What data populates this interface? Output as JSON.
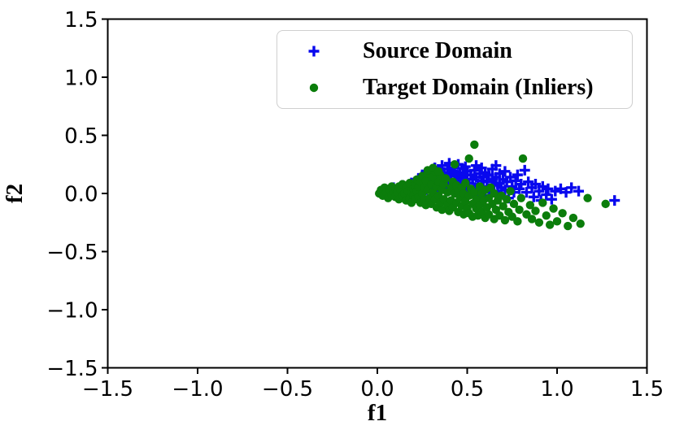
{
  "figure": {
    "background": "#ffffff",
    "axis_color": "#000000",
    "legend_border_color": "#cfcfcf"
  },
  "chart_data": {
    "type": "scatter",
    "title": "",
    "xlabel": "f1",
    "ylabel": "f2",
    "xlim": [
      -1.5,
      1.5
    ],
    "ylim": [
      -1.5,
      1.5
    ],
    "xticks": [
      -1.5,
      -1.0,
      -0.5,
      0.0,
      0.5,
      1.0,
      1.5
    ],
    "yticks": [
      -1.5,
      -1.0,
      -0.5,
      0.0,
      0.5,
      1.0,
      1.5
    ],
    "grid": false,
    "legend_position": "upper right",
    "series": [
      {
        "name": "Source Domain",
        "marker": "plus",
        "color": "#0808ee",
        "points": [
          [
            0.06,
            0.02
          ],
          [
            0.09,
            0.05
          ],
          [
            0.12,
            0.03
          ],
          [
            0.14,
            0.07
          ],
          [
            0.16,
            0.01
          ],
          [
            0.18,
            0.06
          ],
          [
            0.13,
            0.0
          ],
          [
            0.19,
            0.09
          ],
          [
            0.2,
            0.04
          ],
          [
            0.21,
            0.1
          ],
          [
            0.22,
            0.02
          ],
          [
            0.23,
            0.13
          ],
          [
            0.24,
            0.06
          ],
          [
            0.25,
            0.16
          ],
          [
            0.25,
            0.0
          ],
          [
            0.26,
            0.09
          ],
          [
            0.27,
            0.18
          ],
          [
            0.27,
            0.04
          ],
          [
            0.28,
            0.12
          ],
          [
            0.29,
            0.07
          ],
          [
            0.29,
            0.15
          ],
          [
            0.3,
            0.02
          ],
          [
            0.3,
            0.19
          ],
          [
            0.31,
            0.1
          ],
          [
            0.31,
            0.05
          ],
          [
            0.32,
            0.14
          ],
          [
            0.32,
            0.22
          ],
          [
            0.33,
            0.08
          ],
          [
            0.33,
            0.17
          ],
          [
            0.34,
            0.03
          ],
          [
            0.34,
            0.12
          ],
          [
            0.35,
            0.2
          ],
          [
            0.35,
            0.06
          ],
          [
            0.36,
            0.15
          ],
          [
            0.36,
            0.24
          ],
          [
            0.37,
            0.09
          ],
          [
            0.37,
            0.18
          ],
          [
            0.38,
            0.05
          ],
          [
            0.38,
            0.13
          ],
          [
            0.39,
            0.21
          ],
          [
            0.39,
            0.02
          ],
          [
            0.4,
            0.11
          ],
          [
            0.4,
            0.17
          ],
          [
            0.4,
            0.26
          ],
          [
            0.41,
            0.07
          ],
          [
            0.41,
            0.15
          ],
          [
            0.42,
            0.22
          ],
          [
            0.42,
            0.03
          ],
          [
            0.43,
            0.12
          ],
          [
            0.43,
            0.19
          ],
          [
            0.44,
            0.06
          ],
          [
            0.44,
            0.16
          ],
          [
            0.45,
            0.25
          ],
          [
            0.45,
            0.01
          ],
          [
            0.46,
            0.1
          ],
          [
            0.46,
            0.18
          ],
          [
            0.47,
            0.04
          ],
          [
            0.47,
            0.14
          ],
          [
            0.48,
            0.21
          ],
          [
            0.48,
            0.08
          ],
          [
            0.49,
            0.16
          ],
          [
            0.49,
            -0.02
          ],
          [
            0.5,
            0.12
          ],
          [
            0.5,
            0.05
          ],
          [
            0.5,
            0.19
          ],
          [
            0.49,
            0.23
          ],
          [
            0.51,
            0.09
          ],
          [
            0.52,
            0.16
          ],
          [
            0.52,
            0.02
          ],
          [
            0.53,
            0.12
          ],
          [
            0.54,
            0.2
          ],
          [
            0.54,
            0.05
          ],
          [
            0.55,
            0.14
          ],
          [
            0.56,
            0.08
          ],
          [
            0.56,
            -0.03
          ],
          [
            0.57,
            0.17
          ],
          [
            0.57,
            0.03
          ],
          [
            0.58,
            0.11
          ],
          [
            0.58,
            0.22
          ],
          [
            0.59,
            0.06
          ],
          [
            0.59,
            0.14
          ],
          [
            0.6,
            0.01
          ],
          [
            0.6,
            0.18
          ],
          [
            0.55,
            0.24
          ],
          [
            0.61,
            0.1
          ],
          [
            0.62,
            0.04
          ],
          [
            0.62,
            0.16
          ],
          [
            0.63,
            -0.02
          ],
          [
            0.64,
            0.12
          ],
          [
            0.64,
            0.21
          ],
          [
            0.65,
            0.07
          ],
          [
            0.66,
            0.14
          ],
          [
            0.66,
            0.24
          ],
          [
            0.67,
            0.02
          ],
          [
            0.68,
            0.09
          ],
          [
            0.68,
            0.17
          ],
          [
            0.69,
            0.05
          ],
          [
            0.7,
            0.12
          ],
          [
            0.71,
            0.19
          ],
          [
            0.71,
            0.03
          ],
          [
            0.72,
            0.1
          ],
          [
            0.73,
            -0.04
          ],
          [
            0.74,
            0.14
          ],
          [
            0.75,
            0.06
          ],
          [
            0.76,
            0.01
          ],
          [
            0.77,
            0.11
          ],
          [
            0.78,
            0.16
          ],
          [
            0.79,
            0.04
          ],
          [
            0.8,
            0.08
          ],
          [
            0.82,
            0.2
          ],
          [
            0.83,
            0.01
          ],
          [
            0.84,
            0.1
          ],
          [
            0.86,
            0.05
          ],
          [
            0.87,
            -0.03
          ],
          [
            0.88,
            0.08
          ],
          [
            0.9,
            0.02
          ],
          [
            0.91,
            -0.06
          ],
          [
            0.92,
            0.06
          ],
          [
            0.94,
            -0.01
          ],
          [
            0.95,
            0.04
          ],
          [
            0.97,
            -0.05
          ],
          [
            0.99,
            0.02
          ],
          [
            1.02,
            0.04
          ],
          [
            1.05,
            0.01
          ],
          [
            1.08,
            0.05
          ],
          [
            1.12,
            0.02
          ],
          [
            1.32,
            -0.06
          ]
        ]
      },
      {
        "name": "Target Domain (Inliers)",
        "marker": "circle",
        "color": "#0b7d0b",
        "points": [
          [
            0.01,
            0.0
          ],
          [
            0.02,
            0.03
          ],
          [
            0.03,
            -0.02
          ],
          [
            0.04,
            0.05
          ],
          [
            0.05,
            0.01
          ],
          [
            0.06,
            -0.04
          ],
          [
            0.07,
            0.03
          ],
          [
            0.08,
            -0.01
          ],
          [
            0.08,
            0.06
          ],
          [
            0.09,
            0.02
          ],
          [
            0.1,
            -0.03
          ],
          [
            0.1,
            0.04
          ],
          [
            0.11,
            0.01
          ],
          [
            0.12,
            0.06
          ],
          [
            0.12,
            -0.05
          ],
          [
            0.13,
            0.03
          ],
          [
            0.14,
            -0.02
          ],
          [
            0.14,
            0.08
          ],
          [
            0.15,
            0.0
          ],
          [
            0.16,
            0.05
          ],
          [
            0.16,
            -0.06
          ],
          [
            0.17,
            0.02
          ],
          [
            0.18,
            -0.04
          ],
          [
            0.18,
            0.09
          ],
          [
            0.19,
            0.01
          ],
          [
            0.19,
            -0.08
          ],
          [
            0.2,
            0.04
          ],
          [
            0.2,
            -0.02
          ],
          [
            0.21,
            0.07
          ],
          [
            0.21,
            -0.05
          ],
          [
            0.22,
            0.02
          ],
          [
            0.22,
            0.12
          ],
          [
            0.23,
            -0.03
          ],
          [
            0.23,
            0.06
          ],
          [
            0.24,
            -0.08
          ],
          [
            0.24,
            0.1
          ],
          [
            0.25,
            0.0
          ],
          [
            0.25,
            0.15
          ],
          [
            0.26,
            -0.05
          ],
          [
            0.26,
            0.05
          ],
          [
            0.27,
            0.11
          ],
          [
            0.27,
            -0.1
          ],
          [
            0.28,
            0.03
          ],
          [
            0.28,
            0.17
          ],
          [
            0.29,
            -0.04
          ],
          [
            0.3,
            0.08
          ],
          [
            0.3,
            -0.09
          ],
          [
            0.31,
            0.14
          ],
          [
            0.31,
            0.01
          ],
          [
            0.32,
            -0.05
          ],
          [
            0.32,
            0.19
          ],
          [
            0.33,
            0.06
          ],
          [
            0.33,
            -0.12
          ],
          [
            0.34,
            0.1
          ],
          [
            0.34,
            -0.02
          ],
          [
            0.35,
            0.16
          ],
          [
            0.35,
            -0.08
          ],
          [
            0.36,
            0.03
          ],
          [
            0.36,
            -0.14
          ],
          [
            0.37,
            0.08
          ],
          [
            0.37,
            -0.05
          ],
          [
            0.38,
            0.13
          ],
          [
            0.39,
            -0.1
          ],
          [
            0.39,
            0.01
          ],
          [
            0.4,
            -0.15
          ],
          [
            0.41,
            0.05
          ],
          [
            0.41,
            -0.06
          ],
          [
            0.42,
            0.1
          ],
          [
            0.42,
            -0.12
          ],
          [
            0.43,
            0.0
          ],
          [
            0.44,
            -0.08
          ],
          [
            0.44,
            0.07
          ],
          [
            0.45,
            -0.16
          ],
          [
            0.45,
            0.02
          ],
          [
            0.46,
            -0.04
          ],
          [
            0.47,
            -0.11
          ],
          [
            0.47,
            0.05
          ],
          [
            0.48,
            -0.18
          ],
          [
            0.48,
            0.0
          ],
          [
            0.49,
            -0.07
          ],
          [
            0.49,
            0.09
          ],
          [
            0.5,
            -0.13
          ],
          [
            0.51,
            -0.02
          ],
          [
            0.51,
            -0.17
          ],
          [
            0.52,
            0.04
          ],
          [
            0.53,
            -0.09
          ],
          [
            0.53,
            -0.2
          ],
          [
            0.54,
            0.42
          ],
          [
            0.54,
            0.01
          ],
          [
            0.55,
            -0.13
          ],
          [
            0.55,
            -0.05
          ],
          [
            0.56,
            -0.19
          ],
          [
            0.57,
            0.06
          ],
          [
            0.57,
            -0.1
          ],
          [
            0.58,
            -0.16
          ],
          [
            0.58,
            0.0
          ],
          [
            0.59,
            -0.06
          ],
          [
            0.6,
            -0.21
          ],
          [
            0.6,
            0.03
          ],
          [
            0.61,
            -0.12
          ],
          [
            0.62,
            -0.04
          ],
          [
            0.62,
            -0.18
          ],
          [
            0.63,
            0.05
          ],
          [
            0.64,
            -0.09
          ],
          [
            0.65,
            -0.22
          ],
          [
            0.65,
            0.0
          ],
          [
            0.66,
            -0.14
          ],
          [
            0.67,
            -0.06
          ],
          [
            0.68,
            -0.19
          ],
          [
            0.69,
            -0.02
          ],
          [
            0.7,
            -0.11
          ],
          [
            0.71,
            -0.23
          ],
          [
            0.72,
            -0.05
          ],
          [
            0.73,
            -0.16
          ],
          [
            0.74,
            0.02
          ],
          [
            0.75,
            -0.2
          ],
          [
            0.76,
            -0.09
          ],
          [
            0.78,
            -0.24
          ],
          [
            0.79,
            -0.14
          ],
          [
            0.8,
            -0.04
          ],
          [
            0.81,
            0.3
          ],
          [
            0.83,
            -0.18
          ],
          [
            0.85,
            -0.1
          ],
          [
            0.86,
            -0.22
          ],
          [
            0.88,
            -0.15
          ],
          [
            0.9,
            -0.25
          ],
          [
            0.92,
            -0.08
          ],
          [
            0.94,
            -0.19
          ],
          [
            0.96,
            -0.27
          ],
          [
            0.98,
            -0.13
          ],
          [
            1.0,
            -0.24
          ],
          [
            1.03,
            -0.17
          ],
          [
            1.06,
            -0.28
          ],
          [
            1.09,
            -0.21
          ],
          [
            1.13,
            -0.26
          ],
          [
            1.17,
            -0.04
          ],
          [
            0.28,
            0.2
          ],
          [
            0.31,
            0.22
          ],
          [
            0.34,
            0.19
          ],
          [
            0.51,
            0.3
          ],
          [
            0.43,
            0.25
          ],
          [
            1.27,
            -0.09
          ]
        ]
      }
    ]
  }
}
